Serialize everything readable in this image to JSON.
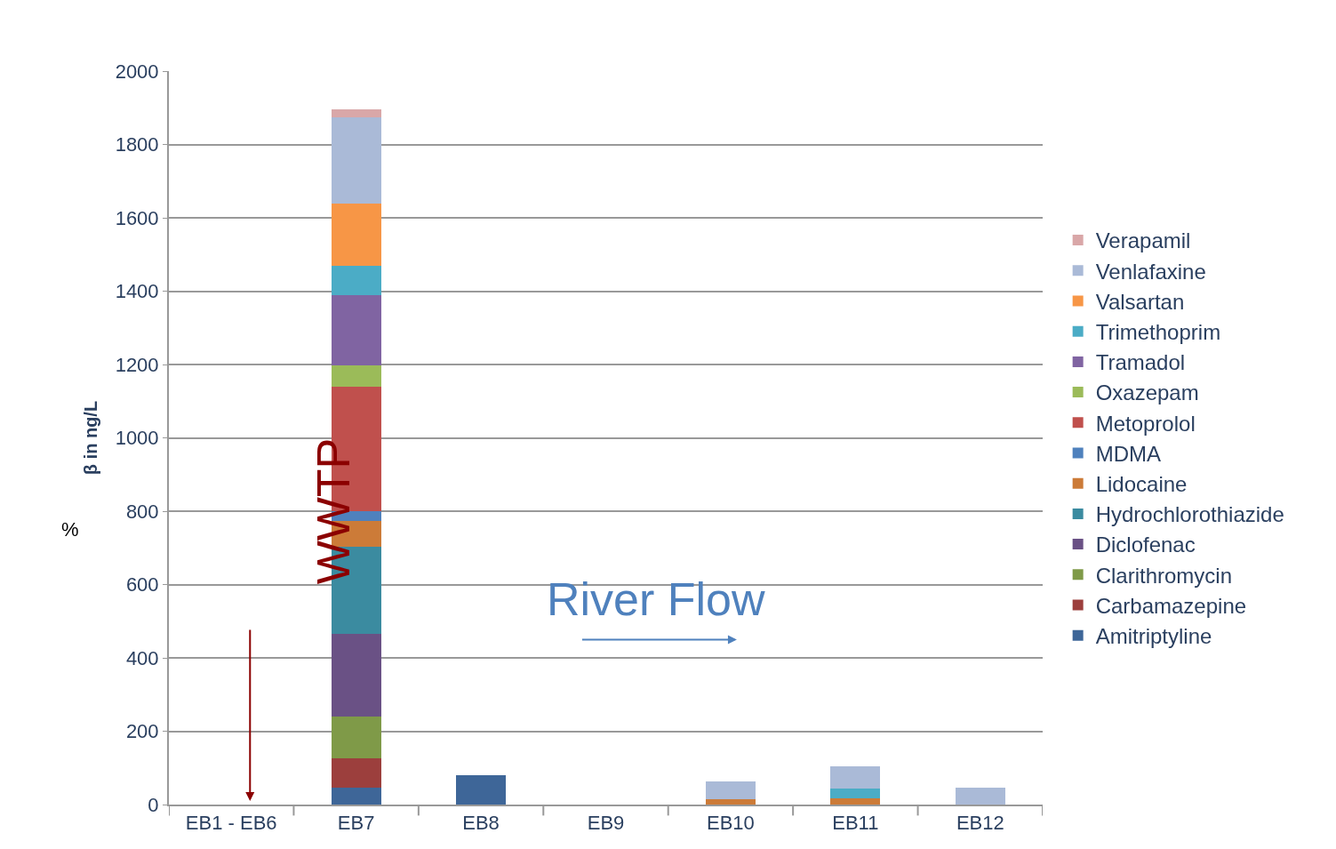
{
  "chart_data": {
    "type": "bar",
    "stacked": true,
    "ylabel": "β in ng/L",
    "categories": [
      "EB1 - EB6",
      "EB7",
      "EB8",
      "EB9",
      "EB10",
      "EB11",
      "EB12"
    ],
    "series": [
      {
        "name": "Amitriptyline",
        "color": "#3e6698",
        "values": [
          null,
          47,
          81,
          null,
          null,
          null,
          null
        ]
      },
      {
        "name": "Carbamazepine",
        "color": "#9c3f3d",
        "values": [
          null,
          79,
          null,
          null,
          null,
          null,
          null
        ]
      },
      {
        "name": "Clarithromycin",
        "color": "#7f9a48",
        "values": [
          null,
          113,
          null,
          null,
          null,
          null,
          null
        ]
      },
      {
        "name": "Diclofenac",
        "color": "#6a5185",
        "values": [
          null,
          226,
          null,
          null,
          null,
          null,
          null
        ]
      },
      {
        "name": "Hydrochlorothiazide",
        "color": "#3b8ba0",
        "values": [
          null,
          239,
          null,
          null,
          null,
          null,
          null
        ]
      },
      {
        "name": "Lidocaine",
        "color": "#cc7b38",
        "values": [
          null,
          69,
          null,
          null,
          14,
          18,
          null
        ]
      },
      {
        "name": "MDMA",
        "color": "#4f81bd",
        "values": [
          null,
          28,
          null,
          null,
          null,
          null,
          null
        ]
      },
      {
        "name": "Metoprolol",
        "color": "#c0504d",
        "values": [
          null,
          339,
          null,
          null,
          null,
          null,
          null
        ]
      },
      {
        "name": "Oxazepam",
        "color": "#9bbb59",
        "values": [
          null,
          57,
          null,
          null,
          null,
          null,
          null
        ]
      },
      {
        "name": "Tramadol",
        "color": "#8064a2",
        "values": [
          null,
          191,
          null,
          null,
          null,
          null,
          null
        ]
      },
      {
        "name": "Trimethoprim",
        "color": "#4bacc6",
        "values": [
          null,
          81,
          null,
          null,
          null,
          26,
          null
        ]
      },
      {
        "name": "Valsartan",
        "color": "#f79646",
        "values": [
          null,
          170,
          null,
          null,
          null,
          null,
          null
        ]
      },
      {
        "name": "Venlafaxine",
        "color": "#aabad7",
        "values": [
          null,
          236,
          null,
          null,
          49,
          60,
          46
        ]
      },
      {
        "name": "Verapamil",
        "color": "#d9a7a8",
        "values": [
          null,
          20,
          null,
          null,
          null,
          null,
          null
        ]
      }
    ],
    "ylim": [
      0,
      2000
    ],
    "yticks": [
      0,
      200,
      400,
      600,
      800,
      1000,
      1200,
      1400,
      1600,
      1800,
      2000
    ],
    "grid": "y",
    "legend": "right",
    "annotations": [
      "WWTP",
      "River Flow",
      "%"
    ]
  }
}
